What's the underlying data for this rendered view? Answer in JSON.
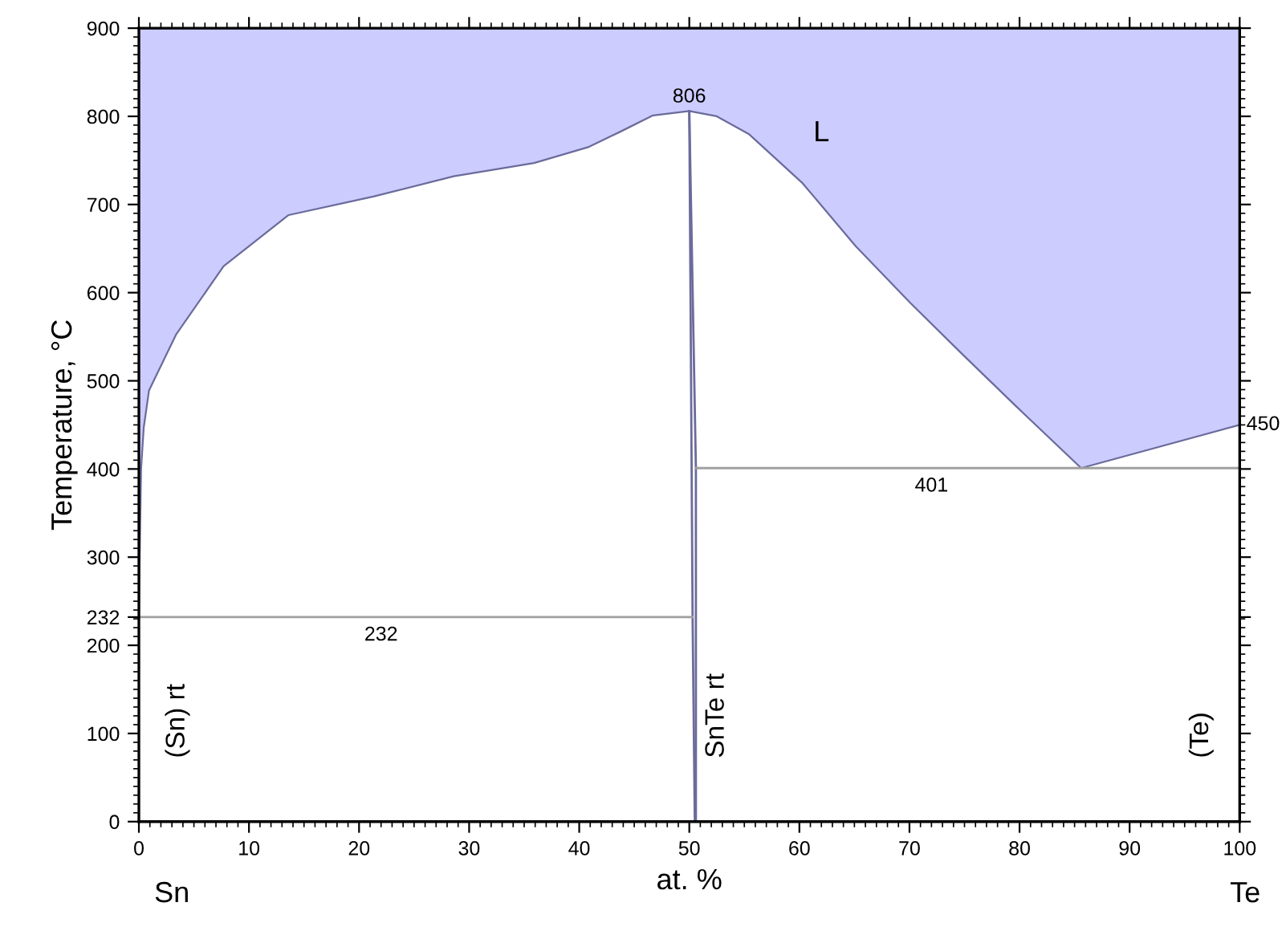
{
  "chart_data": {
    "type": "area",
    "xlabel": "at. %",
    "ylabel": "Temperature, °C",
    "xlim": [
      0,
      100
    ],
    "ylim": [
      0,
      900
    ],
    "xticks": [
      0,
      10,
      20,
      30,
      40,
      50,
      60,
      70,
      80,
      90,
      100
    ],
    "yticks": [
      0,
      100,
      200,
      232,
      300,
      400,
      500,
      600,
      700,
      800,
      900
    ],
    "grid": false,
    "series": [
      {
        "color": "#ccccff",
        "x": [
          0,
          0.1,
          0.2,
          0.44,
          0.92,
          3.4,
          7.7,
          13.6,
          21.3,
          28.6,
          35.9,
          40.8,
          43.8,
          46.7,
          50,
          52.5,
          55.4,
          60.3,
          65.1,
          70.1,
          74.9,
          79.7,
          85.6,
          100,
          100,
          0
        ],
        "values": [
          232,
          320,
          400,
          447,
          489,
          553,
          630,
          688,
          709,
          732,
          747,
          765,
          783,
          801,
          806,
          800,
          780,
          724,
          653,
          588,
          529,
          471,
          401,
          450,
          900,
          900
        ]
      },
      {
        "type": "line",
        "color": "#6b6b9b",
        "x": [
          50,
          50.3,
          50.5
        ],
        "values": [
          806,
          232,
          0
        ]
      },
      {
        "type": "line",
        "color": "#6b6b9b",
        "x": [
          50,
          50.6,
          50.6
        ],
        "values": [
          806,
          401,
          0
        ]
      },
      {
        "type": "line",
        "color": "#a0a0a0",
        "x": [
          0,
          50.3
        ],
        "values": [
          232,
          232
        ]
      },
      {
        "type": "line",
        "color": "#a0a0a0",
        "x": [
          50.6,
          100
        ],
        "values": [
          401,
          401
        ]
      }
    ],
    "annotations": [
      {
        "text": "806",
        "x": 50,
        "y": 806
      },
      {
        "text": "232",
        "x": 22,
        "y": 232
      },
      {
        "text": "401",
        "x": 72,
        "y": 401
      },
      {
        "text": "450",
        "x": 100,
        "y": 450
      },
      "L",
      "(Sn) rt",
      "SnTe rt",
      "(Te)",
      "Sn",
      "Te"
    ]
  }
}
